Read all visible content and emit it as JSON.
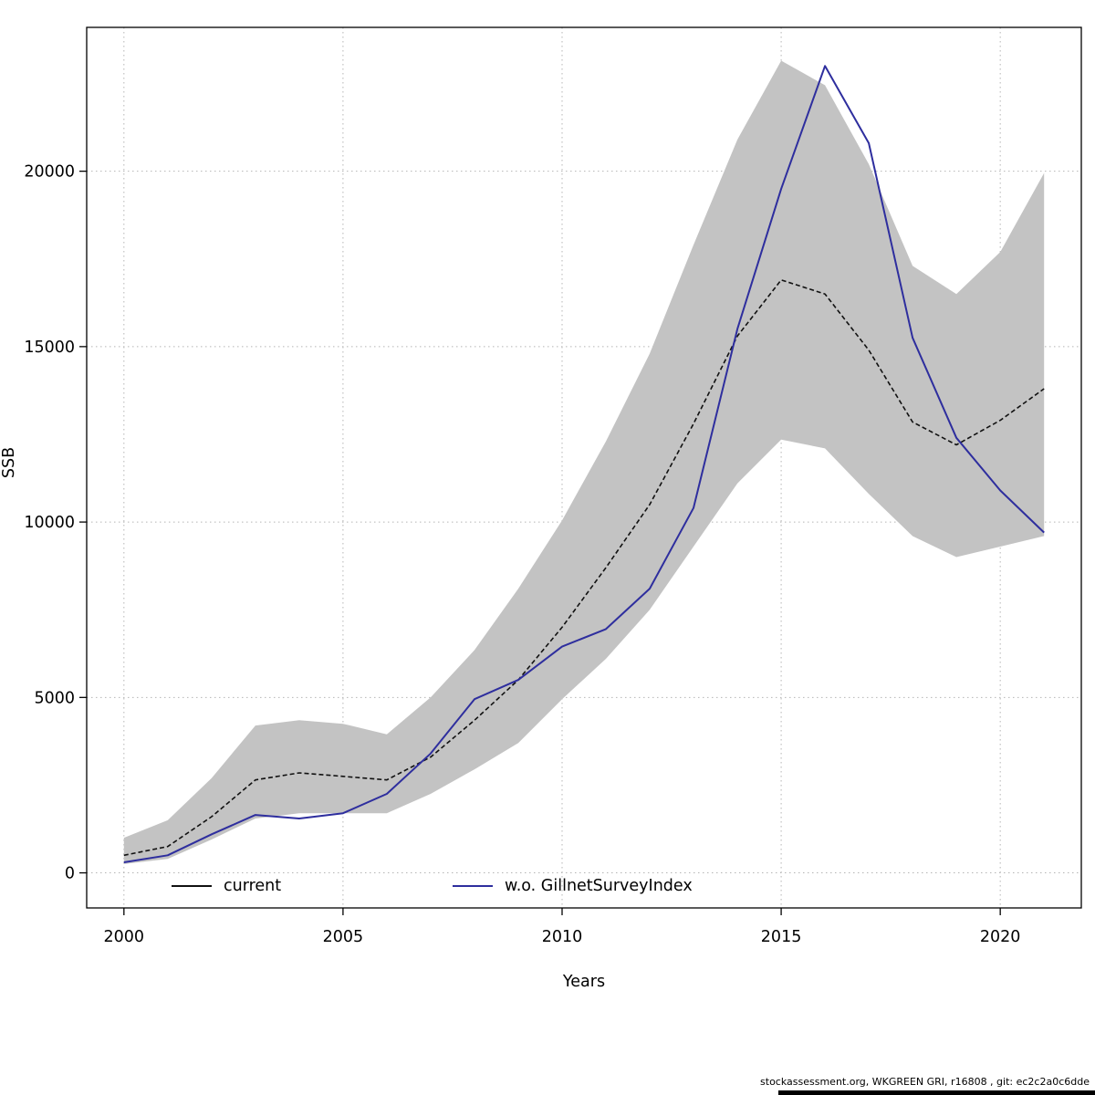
{
  "chart_data": {
    "type": "line",
    "title": "",
    "xlabel": "Years",
    "ylabel": "SSB",
    "x_ticks": [
      2000,
      2005,
      2010,
      2015,
      2020
    ],
    "y_ticks": [
      0,
      5000,
      10000,
      15000,
      20000
    ],
    "xlim": [
      1999.15,
      2021.85
    ],
    "ylim": [
      -1000,
      24100
    ],
    "grid": "dotted",
    "colors": {
      "grid": "#b5b5b5",
      "axis": "#000000",
      "band": "#c3c3c3"
    },
    "years": [
      2000,
      2001,
      2002,
      2003,
      2004,
      2005,
      2006,
      2007,
      2008,
      2009,
      2010,
      2011,
      2012,
      2013,
      2014,
      2015,
      2016,
      2017,
      2018,
      2019,
      2020,
      2021
    ],
    "series": [
      {
        "id": "current",
        "name": "current",
        "color": "#111111",
        "style": "dashed",
        "dash": "5 3",
        "width": 1.6,
        "values": [
          500,
          750,
          1600,
          2650,
          2850,
          2750,
          2650,
          3300,
          4350,
          5500,
          7000,
          8700,
          10500,
          12800,
          15300,
          16900,
          16500,
          14900,
          12850,
          12200,
          12900,
          13800
        ]
      },
      {
        "id": "wo-gillnet",
        "name": "w.o. GillnetSurveyIndex",
        "color": "#2e2e9e",
        "style": "solid",
        "dash": "",
        "width": 2,
        "values": [
          300,
          500,
          1100,
          1650,
          1550,
          1700,
          2250,
          3400,
          4950,
          5500,
          6450,
          6950,
          8100,
          10400,
          15500,
          19500,
          23000,
          20800,
          15250,
          12400,
          10900,
          9700
        ]
      }
    ],
    "band": {
      "series": "current",
      "color": "#c3c3c3",
      "lower": [
        250,
        400,
        950,
        1550,
        1700,
        1700,
        1700,
        2250,
        2950,
        3700,
        4950,
        6100,
        7500,
        9300,
        11100,
        12350,
        12100,
        10800,
        9600,
        9000,
        9300,
        9600
      ],
      "upper": [
        1000,
        1500,
        2700,
        4200,
        4350,
        4250,
        3950,
        5000,
        6350,
        8100,
        10050,
        12300,
        14800,
        17900,
        20900,
        23150,
        22450,
        20200,
        17300,
        16500,
        17700,
        19950
      ]
    },
    "legend": {
      "position": "bottom-inside",
      "items": [
        {
          "label": "current"
        },
        {
          "label": "w.o. GillnetSurveyIndex"
        }
      ]
    }
  },
  "footer": {
    "text": "stockassessment.org, WKGREEN GRI, r16808 , git: ec2c2a0c6dde"
  }
}
